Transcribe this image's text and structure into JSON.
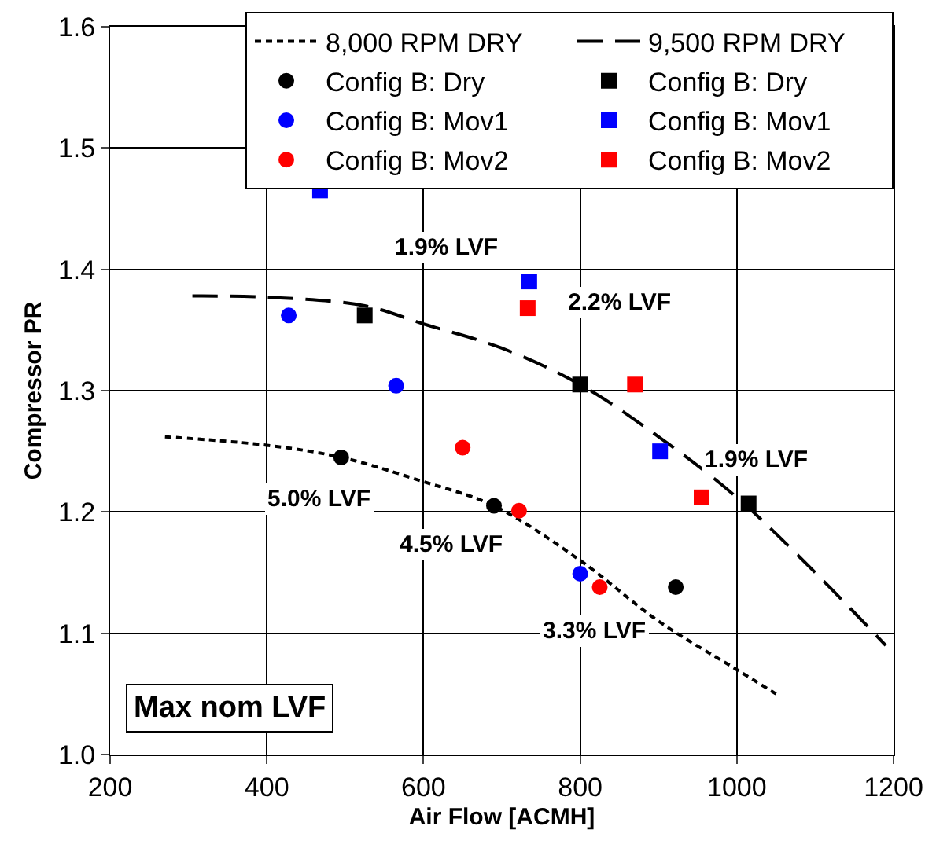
{
  "chart_data": {
    "type": "scatter",
    "xlabel": "Air Flow [ACMH]",
    "ylabel": "Compressor PR",
    "xlim": [
      200,
      1200
    ],
    "xticks": [
      200,
      400,
      600,
      800,
      1000,
      1200
    ],
    "ylim": [
      1.0,
      1.6
    ],
    "yticks": [
      {
        "value": 1.0,
        "label": "1.0"
      },
      1.1,
      1.2,
      1.3,
      1.4,
      1.5,
      1.6
    ],
    "grid": true,
    "legend": "top right",
    "series": [
      {
        "name": "8,000 RPM DRY",
        "type": "line",
        "color": "#000000",
        "line_style": "dotted",
        "marker": "none",
        "x": [
          270,
          400,
          495,
          600,
          690,
          800,
          900,
          1000,
          1050
        ],
        "values": [
          1.262,
          1.255,
          1.245,
          1.225,
          1.205,
          1.16,
          1.11,
          1.07,
          1.05
        ]
      },
      {
        "name": "9,500 RPM DRY",
        "type": "line",
        "color": "#000000",
        "line_style": "dashed",
        "marker": "none",
        "x": [
          305,
          400,
          525,
          600,
          700,
          800,
          900,
          1000,
          1100,
          1190
        ],
        "values": [
          1.378,
          1.377,
          1.37,
          1.355,
          1.335,
          1.305,
          1.262,
          1.212,
          1.15,
          1.09
        ]
      },
      {
        "name": "Config B: Dry",
        "color": "#000000",
        "marker": "circle",
        "x": [
          495,
          690,
          922
        ],
        "values": [
          1.245,
          1.205,
          1.138
        ]
      },
      {
        "name": "Config B: Dry",
        "color": "#000000",
        "marker": "square",
        "x": [
          525,
          800,
          1015
        ],
        "values": [
          1.362,
          1.305,
          1.207
        ]
      },
      {
        "name": "Config B: Mov1",
        "color": "#0000ff",
        "marker": "circle",
        "x": [
          428,
          565,
          800
        ],
        "values": [
          1.362,
          1.304,
          1.149
        ]
      },
      {
        "name": "Config B: Mov1",
        "color": "#0000ff",
        "marker": "square",
        "x": [
          468,
          735,
          902
        ],
        "values": [
          1.465,
          1.39,
          1.25
        ]
      },
      {
        "name": "Config B: Mov2",
        "color": "#ff0000",
        "marker": "circle",
        "x": [
          650,
          722,
          825
        ],
        "values": [
          1.253,
          1.201,
          1.138
        ]
      },
      {
        "name": "Config B: Mov2",
        "color": "#ff0000",
        "marker": "square",
        "x": [
          733,
          870,
          955
        ],
        "values": [
          1.368,
          1.305,
          1.212
        ]
      }
    ],
    "annotations": [
      "1.9% LVF",
      "2.2% LVF",
      "1.9% LVF",
      "5.0% LVF",
      "4.5% LVF",
      "3.3% LVF",
      "Max nom LVF"
    ]
  }
}
